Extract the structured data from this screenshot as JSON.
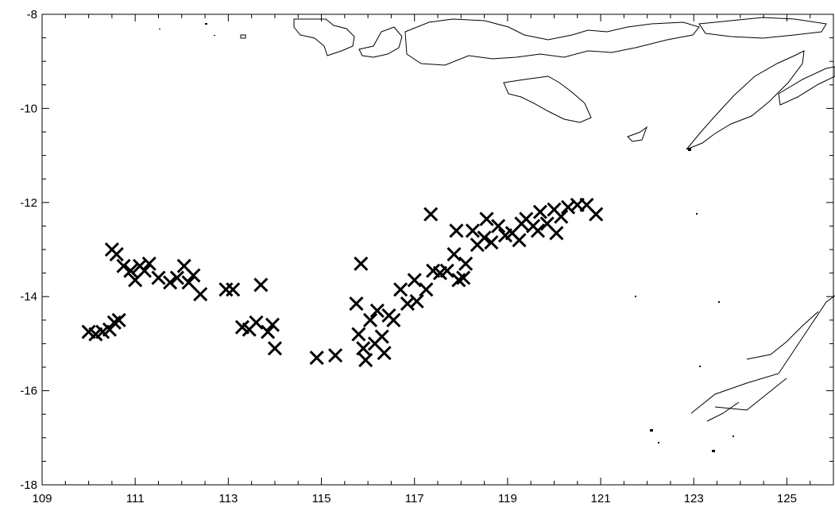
{
  "chart_data": {
    "type": "scatter",
    "title": "",
    "xlabel": "",
    "ylabel": "",
    "xlim": [
      109,
      126
    ],
    "ylim": [
      -18,
      -8
    ],
    "x_major_ticks": [
      109,
      111,
      113,
      115,
      117,
      119,
      121,
      123,
      125
    ],
    "x_tick_labels": [
      "109",
      "111",
      "113",
      "115",
      "117",
      "119",
      "121",
      "123",
      "125"
    ],
    "y_major_ticks": [
      -8,
      -10,
      -12,
      -14,
      -16,
      -18
    ],
    "y_tick_labels": [
      "-8",
      "-10",
      "-12",
      "-14",
      "-16",
      "-18"
    ],
    "minor_ticks_per_major": 4,
    "marker": "x",
    "marker_color": "#000000",
    "grid": false,
    "series": [
      {
        "points": [
          [
            110.0,
            -14.75
          ],
          [
            110.15,
            -14.8
          ],
          [
            110.3,
            -14.75
          ],
          [
            110.45,
            -14.7
          ],
          [
            110.55,
            -14.55
          ],
          [
            110.65,
            -14.5
          ],
          [
            110.5,
            -13.0
          ],
          [
            110.6,
            -13.1
          ],
          [
            110.75,
            -13.35
          ],
          [
            110.9,
            -13.45
          ],
          [
            111.0,
            -13.65
          ],
          [
            111.1,
            -13.35
          ],
          [
            111.2,
            -13.45
          ],
          [
            111.3,
            -13.3
          ],
          [
            111.5,
            -13.6
          ],
          [
            111.75,
            -13.7
          ],
          [
            111.9,
            -13.6
          ],
          [
            112.05,
            -13.35
          ],
          [
            112.15,
            -13.7
          ],
          [
            112.25,
            -13.55
          ],
          [
            112.4,
            -13.95
          ],
          [
            112.95,
            -13.85
          ],
          [
            113.1,
            -13.85
          ],
          [
            113.7,
            -13.75
          ],
          [
            113.3,
            -14.65
          ],
          [
            113.45,
            -14.7
          ],
          [
            113.6,
            -14.55
          ],
          [
            113.85,
            -14.75
          ],
          [
            113.95,
            -14.6
          ],
          [
            114.0,
            -15.1
          ],
          [
            114.9,
            -15.3
          ],
          [
            115.3,
            -15.25
          ],
          [
            115.85,
            -13.3
          ],
          [
            115.75,
            -14.15
          ],
          [
            115.8,
            -14.8
          ],
          [
            115.9,
            -15.1
          ],
          [
            115.95,
            -15.35
          ],
          [
            116.05,
            -14.5
          ],
          [
            116.15,
            -15.0
          ],
          [
            116.2,
            -14.3
          ],
          [
            116.3,
            -14.85
          ],
          [
            116.35,
            -15.2
          ],
          [
            116.45,
            -14.4
          ],
          [
            116.55,
            -14.5
          ],
          [
            116.7,
            -13.85
          ],
          [
            116.85,
            -14.15
          ],
          [
            117.0,
            -13.65
          ],
          [
            117.05,
            -14.1
          ],
          [
            117.25,
            -13.85
          ],
          [
            117.35,
            -12.25
          ],
          [
            117.4,
            -13.45
          ],
          [
            117.55,
            -13.5
          ],
          [
            117.7,
            -13.45
          ],
          [
            117.85,
            -13.1
          ],
          [
            117.95,
            -13.65
          ],
          [
            118.1,
            -13.3
          ],
          [
            118.25,
            -12.6
          ],
          [
            118.35,
            -12.9
          ],
          [
            118.5,
            -12.75
          ],
          [
            118.65,
            -12.85
          ],
          [
            118.8,
            -12.5
          ],
          [
            118.95,
            -12.7
          ],
          [
            119.1,
            -12.65
          ],
          [
            119.25,
            -12.8
          ],
          [
            119.4,
            -12.35
          ],
          [
            119.55,
            -12.5
          ],
          [
            119.7,
            -12.2
          ],
          [
            119.85,
            -12.45
          ],
          [
            120.0,
            -12.15
          ],
          [
            120.15,
            -12.3
          ],
          [
            120.3,
            -12.1
          ],
          [
            120.5,
            -12.05
          ],
          [
            120.7,
            -12.05
          ],
          [
            120.9,
            -12.25
          ],
          [
            117.9,
            -12.6
          ],
          [
            118.55,
            -12.35
          ],
          [
            119.65,
            -12.6
          ],
          [
            120.05,
            -12.65
          ],
          [
            118.05,
            -13.6
          ],
          [
            119.3,
            -12.45
          ]
        ]
      }
    ]
  }
}
